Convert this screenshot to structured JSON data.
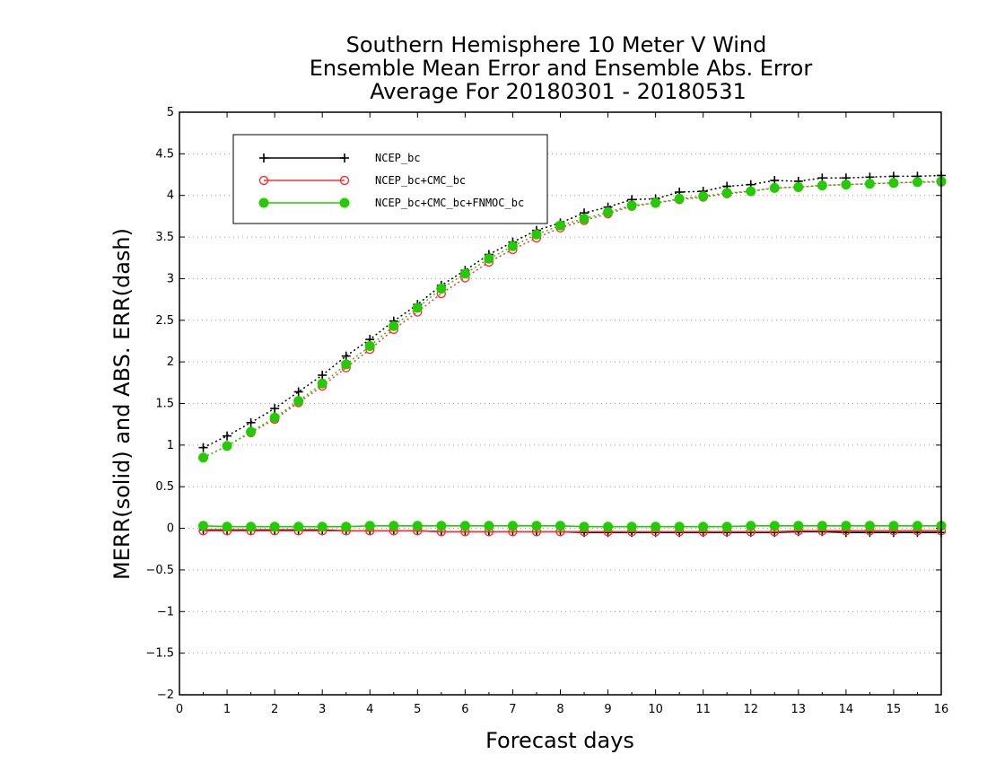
{
  "chart_data": {
    "type": "line",
    "title": [
      "Southern Hemisphere 10 Meter V Wind",
      "Ensemble Mean Error and Ensemble Abs. Error",
      "Average For 20180301 - 20180531"
    ],
    "xlabel": "Forecast days",
    "ylabel": "MERR(solid) and ABS. ERR(dash)",
    "xlim": [
      0,
      16
    ],
    "ylim": [
      -2,
      5
    ],
    "xticks": [
      "0",
      "1",
      "2",
      "3",
      "4",
      "5",
      "6",
      "7",
      "8",
      "9",
      "10",
      "11",
      "12",
      "13",
      "14",
      "15",
      "16"
    ],
    "yticks": [
      "−2",
      "−1.5",
      "−1",
      "−0.5",
      "0",
      "0.5",
      "1",
      "1.5",
      "2",
      "2.5",
      "3",
      "3.5",
      "4",
      "4.5",
      "5"
    ],
    "grid": "horizontal dotted",
    "legend_position": "top-left",
    "x": [
      0.5,
      1,
      1.5,
      2,
      2.5,
      3,
      3.5,
      4,
      4.5,
      5,
      5.5,
      6,
      6.5,
      7,
      7.5,
      8,
      8.5,
      9,
      9.5,
      10,
      10.5,
      11,
      11.5,
      12,
      12.5,
      13,
      13.5,
      14,
      14.5,
      15,
      15.5,
      16
    ],
    "series": [
      {
        "name": "NCEP_bc",
        "color": "#000000",
        "marker": "plus",
        "abs_err": [
          0.97,
          1.11,
          1.27,
          1.44,
          1.64,
          1.84,
          2.07,
          2.27,
          2.49,
          2.69,
          2.92,
          3.1,
          3.29,
          3.44,
          3.58,
          3.67,
          3.79,
          3.86,
          3.95,
          3.96,
          4.04,
          4.05,
          4.11,
          4.13,
          4.18,
          4.17,
          4.21,
          4.21,
          4.22,
          4.23,
          4.23,
          4.24
        ],
        "mean_err": [
          -0.02,
          -0.02,
          -0.02,
          -0.02,
          -0.02,
          -0.02,
          -0.03,
          -0.03,
          -0.03,
          -0.03,
          -0.04,
          -0.04,
          -0.04,
          -0.04,
          -0.04,
          -0.04,
          -0.05,
          -0.05,
          -0.05,
          -0.05,
          -0.05,
          -0.05,
          -0.05,
          -0.05,
          -0.05,
          -0.04,
          -0.04,
          -0.05,
          -0.05,
          -0.05,
          -0.05,
          -0.05
        ]
      },
      {
        "name": "NCEP_bc+CMC_bc",
        "color": "#ff3030",
        "marker": "open-circle",
        "abs_err": [
          0.85,
          0.99,
          1.15,
          1.31,
          1.51,
          1.71,
          1.93,
          2.15,
          2.39,
          2.6,
          2.82,
          3.01,
          3.2,
          3.35,
          3.49,
          3.61,
          3.7,
          3.78,
          3.87,
          3.91,
          3.95,
          3.98,
          4.02,
          4.05,
          4.09,
          4.1,
          4.12,
          4.13,
          4.14,
          4.15,
          4.16,
          4.16
        ],
        "mean_err": [
          -0.03,
          -0.03,
          -0.03,
          -0.03,
          -0.03,
          -0.03,
          -0.03,
          -0.03,
          -0.03,
          -0.03,
          -0.04,
          -0.04,
          -0.04,
          -0.04,
          -0.04,
          -0.04,
          -0.04,
          -0.04,
          -0.04,
          -0.04,
          -0.04,
          -0.04,
          -0.04,
          -0.04,
          -0.04,
          -0.03,
          -0.03,
          -0.03,
          -0.03,
          -0.03,
          -0.03,
          -0.03
        ]
      },
      {
        "name": "NCEP_bc+CMC_bc+FNMOC_bc",
        "color": "#22cc00",
        "marker": "filled-circle",
        "abs_err": [
          0.85,
          0.99,
          1.16,
          1.33,
          1.53,
          1.74,
          1.97,
          2.19,
          2.43,
          2.65,
          2.88,
          3.06,
          3.24,
          3.39,
          3.53,
          3.64,
          3.72,
          3.8,
          3.88,
          3.91,
          3.96,
          3.99,
          4.03,
          4.05,
          4.09,
          4.1,
          4.12,
          4.13,
          4.14,
          4.15,
          4.16,
          4.17
        ],
        "mean_err": [
          0.03,
          0.02,
          0.02,
          0.02,
          0.02,
          0.02,
          0.02,
          0.03,
          0.03,
          0.03,
          0.03,
          0.03,
          0.03,
          0.03,
          0.03,
          0.03,
          0.02,
          0.02,
          0.02,
          0.02,
          0.02,
          0.02,
          0.02,
          0.03,
          0.03,
          0.03,
          0.03,
          0.03,
          0.03,
          0.03,
          0.03,
          0.03
        ]
      }
    ]
  }
}
